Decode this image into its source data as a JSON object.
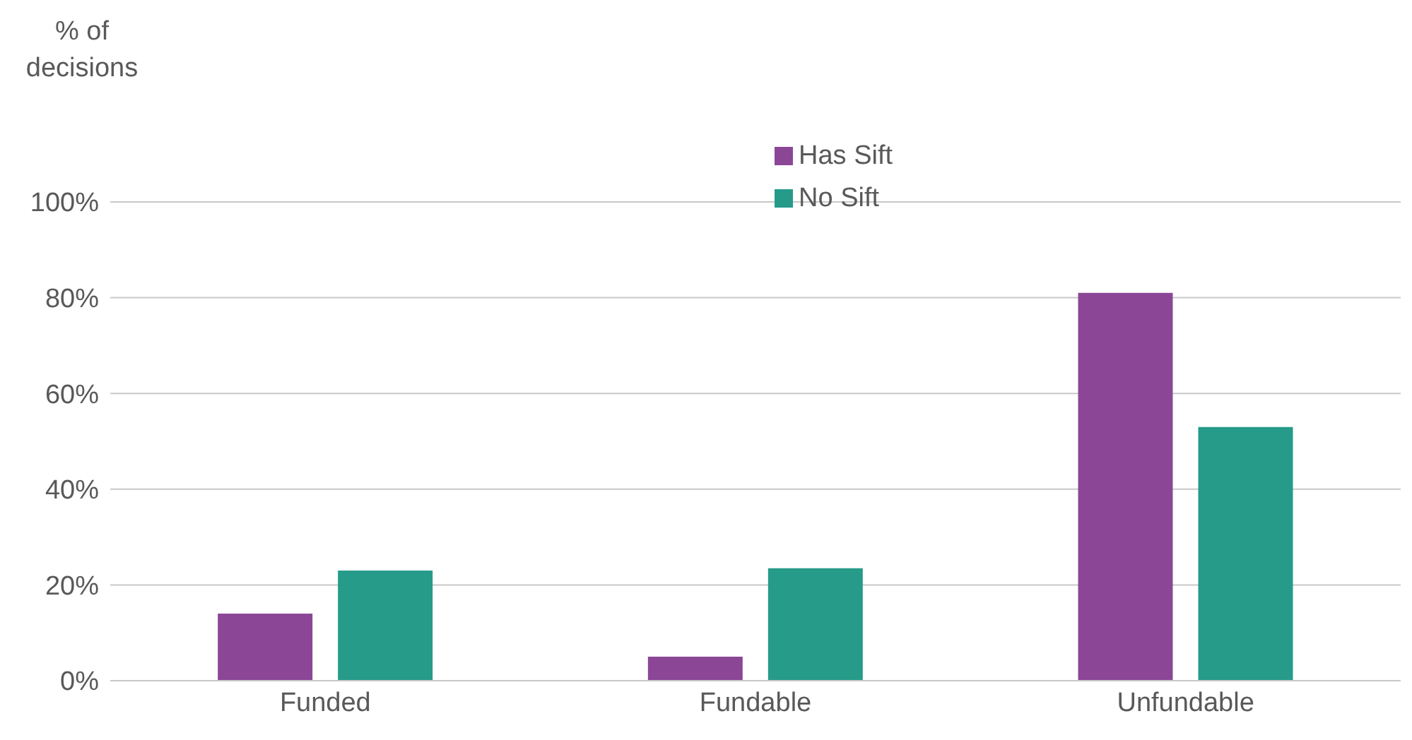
{
  "chart_data": {
    "type": "bar",
    "ylabel": "% of decisions",
    "categories": [
      "Funded",
      "Fundable",
      "Unfundable"
    ],
    "series": [
      {
        "name": "Has Sift",
        "color": "#8b4796",
        "values": [
          14,
          5,
          81
        ]
      },
      {
        "name": "No Sift",
        "color": "#269b89",
        "values": [
          23,
          23.5,
          53
        ]
      }
    ],
    "ylim": [
      0,
      100
    ],
    "yticks": [
      {
        "value": 0,
        "label": "0%"
      },
      {
        "value": 20,
        "label": "20%"
      },
      {
        "value": 40,
        "label": "40%"
      },
      {
        "value": 60,
        "label": "60%"
      },
      {
        "value": 80,
        "label": "80%"
      },
      {
        "value": 100,
        "label": "100%"
      }
    ],
    "grid": "y",
    "legend": "top"
  }
}
